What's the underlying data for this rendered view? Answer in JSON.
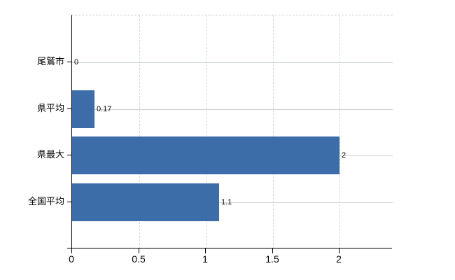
{
  "chart_data": {
    "type": "bar",
    "orientation": "horizontal",
    "title": "",
    "categories": [
      "尾鷲市",
      "県平均",
      "県最大",
      "全国平均"
    ],
    "values": [
      0,
      0.17,
      2,
      1.1
    ],
    "value_labels": [
      "0",
      "0.17",
      "2",
      "1.1"
    ],
    "x_tick_values": [
      0,
      0.5,
      1,
      1.5,
      2
    ],
    "x_tick_labels": [
      "0",
      "0.5",
      "1",
      "1.5",
      "2"
    ],
    "xlim": [
      0,
      2.4
    ],
    "grid": true,
    "legend_position": "none",
    "colors": {
      "bar": "#3c6da9",
      "axis": "#000000",
      "grid_horizontal": "#cdd6cd",
      "grid_vertical": "#d2d8d2",
      "plot_top_border": "#d0cdd2",
      "text": "#000000",
      "background": "#ffffff"
    }
  }
}
